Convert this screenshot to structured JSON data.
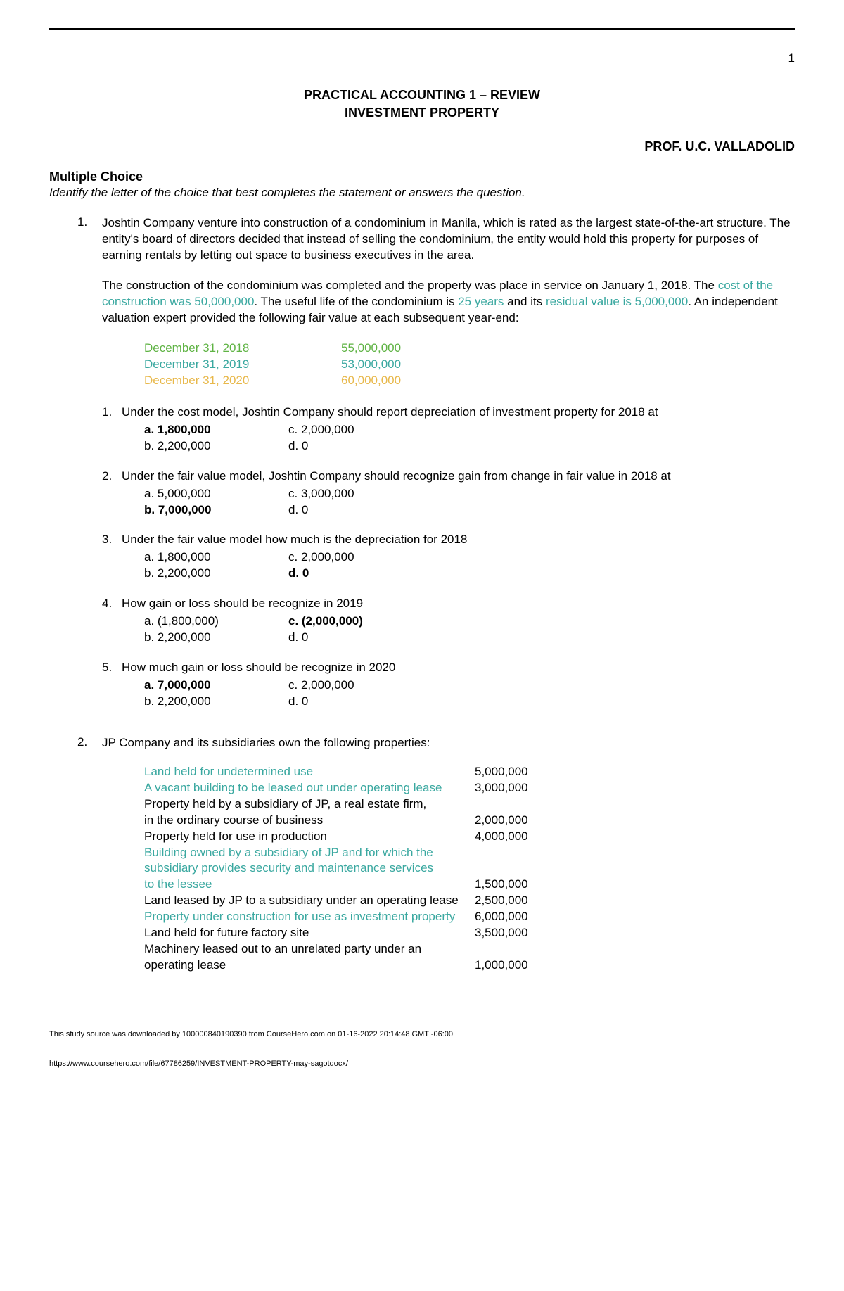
{
  "page_number": "1",
  "title_line1": "PRACTICAL ACCOUNTING 1 – REVIEW",
  "title_line2": "INVESTMENT PROPERTY",
  "professor": "PROF. U.C. VALLADOLID",
  "section_heading": "Multiple Choice",
  "instructions": "Identify the letter of the choice that best completes the statement or answers the question.",
  "q1": {
    "num": "1.",
    "para1": "Joshtin Company venture into construction of a condominium in Manila, which is rated as the largest state-of-the-art structure.  The entity's board of directors decided that instead of selling the condominium, the entity would hold this property for purposes of earning rentals by letting out space to business executives in the area.",
    "para2_pre": "The construction of the condominium was completed and the property was place in service on January 1, 2018. The ",
    "para2_hl1": "cost of the construction was 50,000,000",
    "para2_mid1": ".  The useful life of the condominium is ",
    "para2_hl2": "25 years",
    "para2_mid2": " and its ",
    "para2_hl3": "residual value is 5,000,000",
    "para2_post": ".  An independent valuation expert provided the following fair value at each subsequent year-end:",
    "fv": [
      {
        "date": "December 31, 2018",
        "val": "55,000,000",
        "cls": "hl-green"
      },
      {
        "date": "December 31, 2019",
        "val": "53,000,000",
        "cls": "hl-teal"
      },
      {
        "date": "December 31, 2020",
        "val": "60,000,000",
        "cls": "hl-orange"
      }
    ],
    "subs": [
      {
        "num": "1.",
        "text": "Under the cost model, Joshtin Company should report depreciation of investment property for 2018 at",
        "rows": [
          {
            "a": "a.  1,800,000",
            "a_bold": true,
            "c": "c.  2,000,000",
            "c_bold": false
          },
          {
            "a": "b.  2,200,000",
            "a_bold": false,
            "c": "d.        0",
            "c_bold": false
          }
        ]
      },
      {
        "num": "2.",
        "text": "Under the fair value model, Joshtin Company should recognize gain from change in fair value in 2018 at",
        "rows": [
          {
            "a": "a.  5,000,000",
            "a_bold": false,
            "c": "c.  3,000,000",
            "c_bold": false
          },
          {
            "a": "b.  7,000,000",
            "a_bold": true,
            "c": "d.        0",
            "c_bold": false
          }
        ]
      },
      {
        "num": "3.",
        "text": "Under the fair value model how much is the depreciation for 2018",
        "rows": [
          {
            "a": "a.  1,800,000",
            "a_bold": false,
            "c": "c.  2,000,000",
            "c_bold": false
          },
          {
            "a": "b.  2,200,000",
            "a_bold": false,
            "c": "d.        0",
            "c_bold": true
          }
        ]
      },
      {
        "num": "4.",
        "text": "How gain or loss should be recognize in 2019",
        "rows": [
          {
            "a": "a.  (1,800,000)",
            "a_bold": false,
            "c": "c.  (2,000,000)",
            "c_bold": true
          },
          {
            "a": "b.  2,200,000",
            "a_bold": false,
            "c": "d.         0",
            "c_bold": false
          }
        ]
      },
      {
        "num": "5.",
        "text": "How much gain or loss should be recognize in 2020",
        "rows": [
          {
            "a": "a.  7,000,000",
            "a_bold": true,
            "c": "c.  2,000,000",
            "c_bold": false
          },
          {
            "a": "b.  2,200,000",
            "a_bold": false,
            "c": "d.        0",
            "c_bold": false
          }
        ]
      }
    ]
  },
  "q2": {
    "num": "2.",
    "intro": "JP Company and its subsidiaries own the following properties:",
    "rows": [
      {
        "desc": "Land held for undetermined use",
        "val": "5,000,000",
        "hl": true
      },
      {
        "desc": "A vacant building to be leased out under operating lease",
        "val": "3,000,000",
        "hl": true
      },
      {
        "desc": "Property held by a subsidiary of JP, a real estate firm,",
        "val": "",
        "hl": false
      },
      {
        "desc": "in the ordinary course of business",
        "val": "2,000,000",
        "hl": false
      },
      {
        "desc": "Property held for use in production",
        "val": "4,000,000",
        "hl": false
      },
      {
        "desc": "Building owned by a subsidiary of JP and for which the",
        "val": "",
        "hl": true
      },
      {
        "desc": "subsidiary provides security and maintenance services",
        "val": "",
        "hl": true
      },
      {
        "desc": "to the lessee",
        "val": "1,500,000",
        "hl": true
      },
      {
        "desc": "Land leased by JP to a subsidiary under an operating lease",
        "val": "2,500,000",
        "hl": false
      },
      {
        "desc": "Property under construction for use as investment property",
        "val": "6,000,000",
        "hl": true
      },
      {
        "desc": "Land held for future factory site",
        "val": "3,500,000",
        "hl": false
      },
      {
        "desc": "Machinery leased out to an unrelated party under an",
        "val": "",
        "hl": false
      },
      {
        "desc": "operating lease",
        "val": "1,000,000",
        "hl": false
      }
    ]
  },
  "footer_note": "This study source was downloaded by 100000840190390 from CourseHero.com on 01-16-2022 20:14:48 GMT -06:00",
  "footer_url": "https://www.coursehero.com/file/67786259/INVESTMENT-PROPERTY-may-sagotdocx/"
}
